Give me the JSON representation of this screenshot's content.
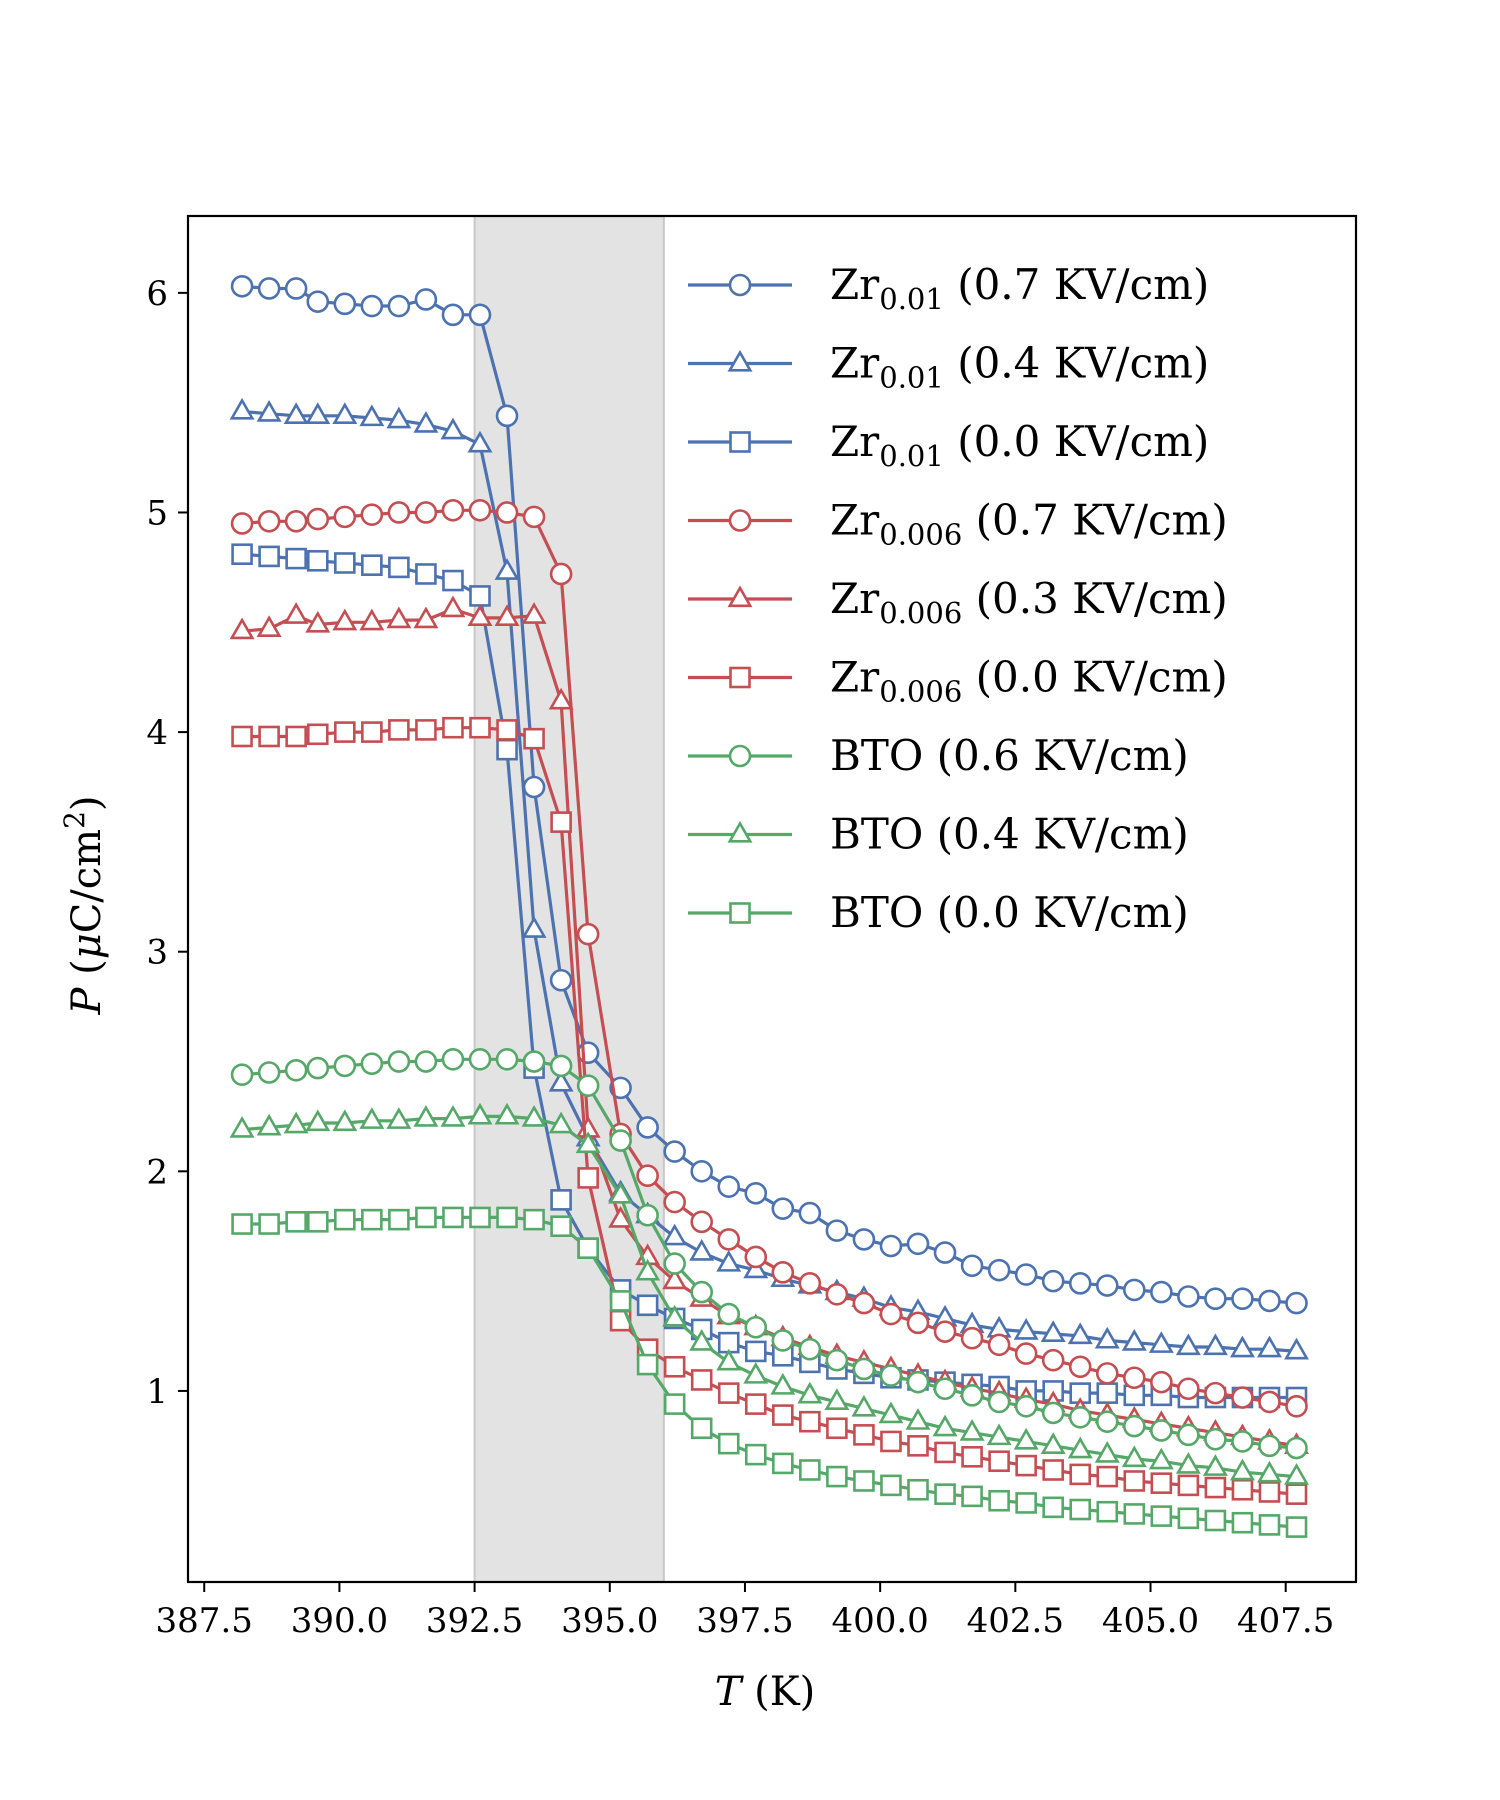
{
  "chart_data": {
    "type": "line",
    "title": "",
    "xlabel": {
      "var": "T",
      "unit": " (K)"
    },
    "ylabel": {
      "var": "P",
      "unit_pre": " (",
      "mu": "μ",
      "unit_mid": "C/cm",
      "sup": "2",
      "unit_post": ")"
    },
    "xlim": [
      387.2,
      408.8
    ],
    "ylim": [
      0.13,
      6.35
    ],
    "xticks": [
      387.5,
      390.0,
      392.5,
      395.0,
      397.5,
      400.0,
      402.5,
      405.0,
      407.5
    ],
    "xtick_labels": [
      "387.5",
      "390.0",
      "392.5",
      "395.0",
      "397.5",
      "400.0",
      "402.5",
      "405.0",
      "407.5"
    ],
    "yticks": [
      1,
      2,
      3,
      4,
      5,
      6
    ],
    "ytick_labels": [
      "1",
      "2",
      "3",
      "4",
      "5",
      "6"
    ],
    "shaded_region": [
      392.5,
      396.0
    ],
    "colors": {
      "Zr0.01": "#4c72b0",
      "Zr0.006": "#c44e52",
      "BTO": "#55a868",
      "shade": "#e3e3e3"
    },
    "legend_position": "top-right",
    "series": [
      {
        "name": "Zr0.01 (0.7 KV/cm)",
        "base": "Zr",
        "sub": "0.01",
        "field": " (0.7 KV/cm)",
        "color": "#4c72b0",
        "marker": "circle",
        "x": [
          388.2,
          388.7,
          389.2,
          389.6,
          390.1,
          390.6,
          391.1,
          391.6,
          392.1,
          392.6,
          393.1,
          393.6,
          394.1,
          394.6,
          395.2,
          395.7,
          396.2,
          396.7,
          397.2,
          397.7,
          398.2,
          398.7,
          399.2,
          399.7,
          400.2,
          400.7,
          401.2,
          401.7,
          402.2,
          402.7,
          403.2,
          403.7,
          404.2,
          404.7,
          405.2,
          405.7,
          406.2,
          406.7,
          407.2,
          407.7
        ],
        "y": [
          6.03,
          6.02,
          6.02,
          5.96,
          5.95,
          5.94,
          5.94,
          5.97,
          5.9,
          5.9,
          5.44,
          3.75,
          2.87,
          2.54,
          2.38,
          2.2,
          2.09,
          2.0,
          1.93,
          1.9,
          1.83,
          1.81,
          1.73,
          1.69,
          1.66,
          1.67,
          1.63,
          1.57,
          1.55,
          1.53,
          1.5,
          1.49,
          1.48,
          1.46,
          1.45,
          1.43,
          1.42,
          1.42,
          1.41,
          1.4
        ]
      },
      {
        "name": "Zr0.01 (0.4 KV/cm)",
        "base": "Zr",
        "sub": "0.01",
        "field": " (0.4 KV/cm)",
        "color": "#4c72b0",
        "marker": "triangle",
        "x": [
          388.2,
          388.7,
          389.2,
          389.6,
          390.1,
          390.6,
          391.1,
          391.6,
          392.1,
          392.6,
          393.1,
          393.6,
          394.1,
          394.6,
          395.2,
          395.7,
          396.2,
          396.7,
          397.2,
          397.7,
          398.2,
          398.7,
          399.2,
          399.7,
          400.2,
          400.7,
          401.2,
          401.7,
          402.2,
          402.7,
          403.2,
          403.7,
          404.2,
          404.7,
          405.2,
          405.7,
          406.2,
          406.7,
          407.2,
          407.7
        ],
        "y": [
          5.46,
          5.45,
          5.44,
          5.44,
          5.44,
          5.43,
          5.42,
          5.4,
          5.37,
          5.31,
          4.73,
          3.1,
          2.4,
          2.15,
          1.9,
          1.8,
          1.7,
          1.63,
          1.58,
          1.55,
          1.51,
          1.48,
          1.45,
          1.42,
          1.38,
          1.36,
          1.33,
          1.3,
          1.28,
          1.27,
          1.26,
          1.25,
          1.23,
          1.22,
          1.21,
          1.2,
          1.2,
          1.19,
          1.19,
          1.18
        ]
      },
      {
        "name": "Zr0.01 (0.0 KV/cm)",
        "base": "Zr",
        "sub": "0.01",
        "field": " (0.0 KV/cm)",
        "color": "#4c72b0",
        "marker": "square",
        "x": [
          388.2,
          388.7,
          389.2,
          389.6,
          390.1,
          390.6,
          391.1,
          391.6,
          392.1,
          392.6,
          393.1,
          393.6,
          394.1,
          394.6,
          395.2,
          395.7,
          396.2,
          396.7,
          397.2,
          397.7,
          398.2,
          398.7,
          399.2,
          399.7,
          400.2,
          400.7,
          401.2,
          401.7,
          402.2,
          402.7,
          403.2,
          403.7,
          404.2,
          404.7,
          405.2,
          405.7,
          406.2,
          406.7,
          407.2,
          407.7
        ],
        "y": [
          4.81,
          4.8,
          4.79,
          4.78,
          4.77,
          4.76,
          4.75,
          4.72,
          4.69,
          4.62,
          3.92,
          2.47,
          1.87,
          1.65,
          1.46,
          1.39,
          1.33,
          1.28,
          1.22,
          1.18,
          1.16,
          1.13,
          1.1,
          1.08,
          1.06,
          1.05,
          1.04,
          1.03,
          1.02,
          1.0,
          1.0,
          0.99,
          0.99,
          0.98,
          0.98,
          0.97,
          0.97,
          0.97,
          0.97,
          0.97
        ]
      },
      {
        "name": "Zr0.006 (0.7 KV/cm)",
        "base": "Zr",
        "sub": "0.006",
        "field": " (0.7 KV/cm)",
        "color": "#c44e52",
        "marker": "circle",
        "x": [
          388.2,
          388.7,
          389.2,
          389.6,
          390.1,
          390.6,
          391.1,
          391.6,
          392.1,
          392.6,
          393.1,
          393.6,
          394.1,
          394.6,
          395.2,
          395.7,
          396.2,
          396.7,
          397.2,
          397.7,
          398.2,
          398.7,
          399.2,
          399.7,
          400.2,
          400.7,
          401.2,
          401.7,
          402.2,
          402.7,
          403.2,
          403.7,
          404.2,
          404.7,
          405.2,
          405.7,
          406.2,
          406.7,
          407.2,
          407.7
        ],
        "y": [
          4.95,
          4.96,
          4.96,
          4.97,
          4.98,
          4.99,
          5.0,
          5.0,
          5.01,
          5.01,
          5.0,
          4.98,
          4.72,
          3.08,
          2.17,
          1.98,
          1.86,
          1.77,
          1.69,
          1.61,
          1.54,
          1.49,
          1.44,
          1.4,
          1.35,
          1.31,
          1.27,
          1.24,
          1.21,
          1.17,
          1.14,
          1.11,
          1.08,
          1.06,
          1.04,
          1.01,
          0.99,
          0.97,
          0.95,
          0.93
        ]
      },
      {
        "name": "Zr0.006 (0.3 KV/cm)",
        "base": "Zr",
        "sub": "0.006",
        "field": " (0.3 KV/cm)",
        "color": "#c44e52",
        "marker": "triangle",
        "x": [
          388.2,
          388.7,
          389.2,
          389.6,
          390.1,
          390.6,
          391.1,
          391.6,
          392.1,
          392.6,
          393.1,
          393.6,
          394.1,
          394.6,
          395.2,
          395.7,
          396.2,
          396.7,
          397.2,
          397.7,
          398.2,
          398.7,
          399.2,
          399.7,
          400.2,
          400.7,
          401.2,
          401.7,
          402.2,
          402.7,
          403.2,
          403.7,
          404.2,
          404.7,
          405.2,
          405.7,
          406.2,
          406.7,
          407.2,
          407.7
        ],
        "y": [
          4.46,
          4.47,
          4.53,
          4.49,
          4.5,
          4.5,
          4.51,
          4.51,
          4.56,
          4.52,
          4.52,
          4.53,
          4.14,
          2.19,
          1.78,
          1.61,
          1.5,
          1.42,
          1.34,
          1.29,
          1.24,
          1.2,
          1.16,
          1.13,
          1.1,
          1.07,
          1.04,
          1.01,
          0.99,
          0.96,
          0.94,
          0.91,
          0.89,
          0.87,
          0.85,
          0.83,
          0.81,
          0.79,
          0.77,
          0.75
        ]
      },
      {
        "name": "Zr0.006 (0.0 KV/cm)",
        "base": "Zr",
        "sub": "0.006",
        "field": " (0.0 KV/cm)",
        "color": "#c44e52",
        "marker": "square",
        "x": [
          388.2,
          388.7,
          389.2,
          389.6,
          390.1,
          390.6,
          391.1,
          391.6,
          392.1,
          392.6,
          393.1,
          393.6,
          394.1,
          394.6,
          395.2,
          395.7,
          396.2,
          396.7,
          397.2,
          397.7,
          398.2,
          398.7,
          399.2,
          399.7,
          400.2,
          400.7,
          401.2,
          401.7,
          402.2,
          402.7,
          403.2,
          403.7,
          404.2,
          404.7,
          405.2,
          405.7,
          406.2,
          406.7,
          407.2,
          407.7
        ],
        "y": [
          3.98,
          3.98,
          3.98,
          3.99,
          4.0,
          4.0,
          4.01,
          4.01,
          4.02,
          4.02,
          4.01,
          3.97,
          3.59,
          1.97,
          1.32,
          1.19,
          1.11,
          1.05,
          0.99,
          0.94,
          0.89,
          0.86,
          0.83,
          0.8,
          0.77,
          0.75,
          0.72,
          0.7,
          0.68,
          0.66,
          0.64,
          0.62,
          0.61,
          0.59,
          0.58,
          0.57,
          0.56,
          0.55,
          0.54,
          0.53
        ]
      },
      {
        "name": "BTO (0.6 KV/cm)",
        "base": "BTO",
        "sub": "",
        "field": " (0.6 KV/cm)",
        "color": "#55a868",
        "marker": "circle",
        "x": [
          388.2,
          388.7,
          389.2,
          389.6,
          390.1,
          390.6,
          391.1,
          391.6,
          392.1,
          392.6,
          393.1,
          393.6,
          394.1,
          394.6,
          395.2,
          395.7,
          396.2,
          396.7,
          397.2,
          397.7,
          398.2,
          398.7,
          399.2,
          399.7,
          400.2,
          400.7,
          401.2,
          401.7,
          402.2,
          402.7,
          403.2,
          403.7,
          404.2,
          404.7,
          405.2,
          405.7,
          406.2,
          406.7,
          407.2,
          407.7
        ],
        "y": [
          2.44,
          2.45,
          2.46,
          2.47,
          2.48,
          2.49,
          2.5,
          2.5,
          2.51,
          2.51,
          2.51,
          2.5,
          2.48,
          2.39,
          2.14,
          1.8,
          1.58,
          1.45,
          1.35,
          1.29,
          1.23,
          1.19,
          1.14,
          1.1,
          1.07,
          1.04,
          1.01,
          0.98,
          0.95,
          0.93,
          0.9,
          0.88,
          0.86,
          0.84,
          0.82,
          0.8,
          0.78,
          0.77,
          0.75,
          0.74
        ]
      },
      {
        "name": "BTO (0.4 KV/cm)",
        "base": "BTO",
        "sub": "",
        "field": " (0.4 KV/cm)",
        "color": "#55a868",
        "marker": "triangle",
        "x": [
          388.2,
          388.7,
          389.2,
          389.6,
          390.1,
          390.6,
          391.1,
          391.6,
          392.1,
          392.6,
          393.1,
          393.6,
          394.1,
          394.6,
          395.2,
          395.7,
          396.2,
          396.7,
          397.2,
          397.7,
          398.2,
          398.7,
          399.2,
          399.7,
          400.2,
          400.7,
          401.2,
          401.7,
          402.2,
          402.7,
          403.2,
          403.7,
          404.2,
          404.7,
          405.2,
          405.7,
          406.2,
          406.7,
          407.2,
          407.7
        ],
        "y": [
          2.19,
          2.2,
          2.21,
          2.22,
          2.22,
          2.23,
          2.23,
          2.24,
          2.24,
          2.25,
          2.25,
          2.24,
          2.21,
          2.12,
          1.89,
          1.54,
          1.33,
          1.22,
          1.13,
          1.07,
          1.02,
          0.98,
          0.95,
          0.92,
          0.89,
          0.86,
          0.83,
          0.81,
          0.79,
          0.77,
          0.75,
          0.73,
          0.71,
          0.69,
          0.68,
          0.66,
          0.65,
          0.63,
          0.62,
          0.61
        ]
      },
      {
        "name": "BTO (0.0 KV/cm)",
        "base": "BTO",
        "sub": "",
        "field": " (0.0 KV/cm)",
        "color": "#55a868",
        "marker": "square",
        "x": [
          388.2,
          388.7,
          389.2,
          389.6,
          390.1,
          390.6,
          391.1,
          391.6,
          392.1,
          392.6,
          393.1,
          393.6,
          394.1,
          394.6,
          395.2,
          395.7,
          396.2,
          396.7,
          397.2,
          397.7,
          398.2,
          398.7,
          399.2,
          399.7,
          400.2,
          400.7,
          401.2,
          401.7,
          402.2,
          402.7,
          403.2,
          403.7,
          404.2,
          404.7,
          405.2,
          405.7,
          406.2,
          406.7,
          407.2,
          407.7
        ],
        "y": [
          1.76,
          1.76,
          1.77,
          1.77,
          1.78,
          1.78,
          1.78,
          1.79,
          1.79,
          1.79,
          1.79,
          1.78,
          1.75,
          1.65,
          1.41,
          1.12,
          0.94,
          0.83,
          0.76,
          0.71,
          0.67,
          0.64,
          0.61,
          0.59,
          0.57,
          0.55,
          0.53,
          0.52,
          0.5,
          0.49,
          0.47,
          0.46,
          0.45,
          0.44,
          0.43,
          0.42,
          0.41,
          0.4,
          0.39,
          0.38
        ]
      }
    ]
  }
}
